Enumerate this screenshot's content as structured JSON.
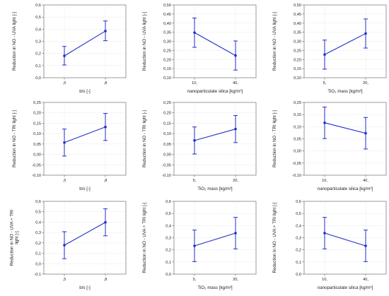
{
  "chart_data": [
    {
      "type": "line",
      "xlabel": "b/s [-]",
      "ylabel": [
        "Reduction in NO - UVA light [-]"
      ],
      "categories": [
        ",5",
        ",8"
      ],
      "values": [
        0.18,
        0.385
      ],
      "errors_low": [
        0.105,
        0.305
      ],
      "errors_high": [
        0.258,
        0.468
      ],
      "ylim": [
        0.0,
        0.6
      ],
      "yticks": [
        "0,0",
        "0,1",
        "0,2",
        "0,3",
        "0,4",
        "0,5",
        "0,6"
      ],
      "color": "#1f2fc8"
    },
    {
      "type": "line",
      "xlabel": "nanoparticulate silica [kg/m³]",
      "ylabel": [
        "Reduction in NO - UVA light [-]"
      ],
      "categories": [
        "10,",
        "40,"
      ],
      "values": [
        0.348,
        0.222
      ],
      "errors_low": [
        0.267,
        0.142
      ],
      "errors_high": [
        0.428,
        0.302
      ],
      "ylim": [
        0.1,
        0.5
      ],
      "yticks": [
        "0,10",
        "0,15",
        "0,20",
        "0,25",
        "0,30",
        "0,35",
        "0,40",
        "0,45",
        "0,50"
      ],
      "color": "#1f2fc8"
    },
    {
      "type": "line",
      "xlabel": "TiO₂ mass [kg/m³]",
      "ylabel": [
        "Reduction in NO - UVA light [-]"
      ],
      "categories": [
        "5,",
        "20,"
      ],
      "values": [
        0.227,
        0.343
      ],
      "errors_low": [
        0.147,
        0.263
      ],
      "errors_high": [
        0.307,
        0.423
      ],
      "ylim": [
        0.1,
        0.5
      ],
      "yticks": [
        "0,10",
        "0,15",
        "0,20",
        "0,25",
        "0,30",
        "0,35",
        "0,40",
        "0,45",
        "0,50"
      ],
      "color": "#1f2fc8"
    },
    {
      "type": "line",
      "xlabel": "b/s [-]",
      "ylabel": [
        "Reduction in NO - TRI light [-]"
      ],
      "categories": [
        ",5",
        ",8"
      ],
      "values": [
        0.057,
        0.132
      ],
      "errors_low": [
        -0.008,
        0.067
      ],
      "errors_high": [
        0.122,
        0.197
      ],
      "ylim": [
        -0.1,
        0.25
      ],
      "yticks": [
        "-0,10",
        "-0,05",
        "0,00",
        "0,05",
        "0,10",
        "0,15",
        "0,20",
        "0,25"
      ],
      "color": "#1f2fc8"
    },
    {
      "type": "line",
      "xlabel": "TiO₂ mass [kg/m³]",
      "ylabel": [
        "Reduction in NO - TRI light [-]"
      ],
      "categories": [
        "5,",
        "20,"
      ],
      "values": [
        0.067,
        0.122
      ],
      "errors_low": [
        0.002,
        0.057
      ],
      "errors_high": [
        0.132,
        0.187
      ],
      "ylim": [
        -0.1,
        0.25
      ],
      "yticks": [
        "-0,10",
        "-0,05",
        "0,00",
        "0,05",
        "0,10",
        "0,15",
        "0,20",
        "0,25"
      ],
      "color": "#1f2fc8"
    },
    {
      "type": "line",
      "xlabel": "nanoparticulate silica [kg/m³]",
      "ylabel": [
        "Reduction in NO - TRI light [-]"
      ],
      "categories": [
        "10,",
        "40,"
      ],
      "values": [
        0.116,
        0.073
      ],
      "errors_low": [
        0.051,
        0.008
      ],
      "errors_high": [
        0.181,
        0.138
      ],
      "ylim": [
        -0.1,
        0.2
      ],
      "yticks": [
        "-0,10",
        "-0,05",
        "0,00",
        "0,05",
        "0,10",
        "0,15",
        "0,20"
      ],
      "color": "#1f2fc8"
    },
    {
      "type": "line",
      "xlabel": "b/s [-]",
      "ylabel": [
        "Reduction in NO - UVA + TRI",
        "light [-]"
      ],
      "categories": [
        ",5",
        ",8"
      ],
      "values": [
        0.178,
        0.398
      ],
      "errors_low": [
        0.048,
        0.268
      ],
      "errors_high": [
        0.308,
        0.528
      ],
      "ylim": [
        -0.1,
        0.6
      ],
      "yticks": [
        "-0,1",
        "0,0",
        "0,1",
        "0,2",
        "0,3",
        "0,4",
        "0,5",
        "0,6"
      ],
      "color": "#1f2fc8"
    },
    {
      "type": "line",
      "xlabel": "TiO₂ mass [kg/m³]",
      "ylabel": [
        "Reduction in NO - UVA + TRI light [-]"
      ],
      "categories": [
        "5,",
        "20,"
      ],
      "values": [
        0.233,
        0.338
      ],
      "errors_low": [
        0.103,
        0.208
      ],
      "errors_high": [
        0.363,
        0.468
      ],
      "ylim": [
        0.0,
        0.6
      ],
      "yticks": [
        "0,0",
        "0,1",
        "0,2",
        "0,3",
        "0,4",
        "0,5",
        "0,6"
      ],
      "color": "#1f2fc8"
    },
    {
      "type": "line",
      "xlabel": "nanoparticulate silica [kg/m³]",
      "ylabel": [
        "Reduction in NO - UVA + TRI light [-]"
      ],
      "categories": [
        "10,",
        "40,"
      ],
      "values": [
        0.338,
        0.233
      ],
      "errors_low": [
        0.208,
        0.103
      ],
      "errors_high": [
        0.468,
        0.363
      ],
      "ylim": [
        0.0,
        0.6
      ],
      "yticks": [
        "0,0",
        "0,1",
        "0,2",
        "0,3",
        "0,4",
        "0,5",
        "0,6"
      ],
      "color": "#1f2fc8"
    }
  ]
}
